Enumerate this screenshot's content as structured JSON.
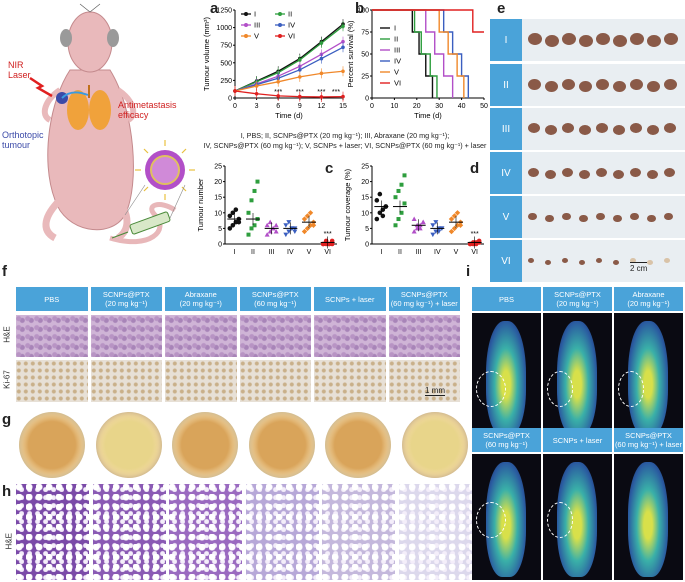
{
  "panel_labels": {
    "a": "a",
    "b": "b",
    "c": "c",
    "d": "d",
    "e": "e",
    "f": "f",
    "g": "g",
    "h": "h",
    "i": "i"
  },
  "mouse": {
    "nir_laser": "NIR\nLaser",
    "orthotopic": "Orthotopic\ntumour",
    "antimetastasis": "Antimetastasis\nefficacy"
  },
  "groups_caption_line1": "I, PBS; II, SCNPs@PTX (20 mg kg⁻¹); III, Abraxane (20 mg kg⁻¹);",
  "groups_caption_line2": "IV, SCNPs@PTX (60 mg kg⁻¹); V, SCNPs + laser; VI, SCNPs@PTX (60 mg kg⁻¹) + laser",
  "colors": {
    "I": "#111111",
    "II": "#2e9e3e",
    "III": "#b24fc8",
    "IV": "#3b5fc0",
    "V": "#f0882a",
    "VI": "#e02020"
  },
  "chart_data": [
    {
      "id": "a",
      "type": "line",
      "xlabel": "Time (d)",
      "ylabel": "Tumour volume (mm³)",
      "x": [
        0,
        3,
        6,
        9,
        12,
        15
      ],
      "xlim": [
        0,
        15
      ],
      "ylim": [
        0,
        1250
      ],
      "xticks": [
        "0",
        "3",
        "6",
        "9",
        "12",
        "15"
      ],
      "yticks": [
        "0",
        "250",
        "500",
        "750",
        "1000",
        "1250"
      ],
      "series": [
        {
          "name": "I",
          "values": [
            100,
            240,
            380,
            560,
            800,
            1050
          ]
        },
        {
          "name": "II",
          "values": [
            100,
            230,
            360,
            540,
            780,
            1020
          ]
        },
        {
          "name": "III",
          "values": [
            100,
            200,
            310,
            450,
            620,
            800
          ]
        },
        {
          "name": "IV",
          "values": [
            100,
            190,
            280,
            400,
            560,
            720
          ]
        },
        {
          "name": "V",
          "values": [
            100,
            170,
            230,
            300,
            350,
            380
          ]
        },
        {
          "name": "VI",
          "values": [
            100,
            60,
            30,
            20,
            15,
            20
          ]
        }
      ],
      "annotations": [
        "***",
        "***",
        "***",
        "***"
      ]
    },
    {
      "id": "b",
      "type": "line",
      "xlabel": "Time (d)",
      "ylabel": "Percent survival (%)",
      "xlim": [
        0,
        50
      ],
      "ylim": [
        0,
        100
      ],
      "xticks": [
        "0",
        "10",
        "20",
        "30",
        "40",
        "50"
      ],
      "yticks": [
        "0",
        "25",
        "50",
        "75",
        "100"
      ],
      "series": [
        {
          "name": "I",
          "steps": [
            [
              0,
              100
            ],
            [
              18,
              100
            ],
            [
              18,
              75
            ],
            [
              21,
              75
            ],
            [
              21,
              50
            ],
            [
              24,
              50
            ],
            [
              24,
              25
            ],
            [
              27,
              25
            ],
            [
              27,
              0
            ]
          ]
        },
        {
          "name": "II",
          "steps": [
            [
              0,
              100
            ],
            [
              19,
              100
            ],
            [
              19,
              75
            ],
            [
              22,
              75
            ],
            [
              22,
              50
            ],
            [
              26,
              50
            ],
            [
              26,
              25
            ],
            [
              29,
              25
            ],
            [
              29,
              0
            ]
          ]
        },
        {
          "name": "III",
          "steps": [
            [
              0,
              100
            ],
            [
              24,
              100
            ],
            [
              24,
              75
            ],
            [
              28,
              75
            ],
            [
              28,
              50
            ],
            [
              32,
              50
            ],
            [
              32,
              25
            ],
            [
              36,
              25
            ],
            [
              36,
              0
            ]
          ]
        },
        {
          "name": "IV",
          "steps": [
            [
              0,
              100
            ],
            [
              32,
              100
            ],
            [
              32,
              75
            ],
            [
              36,
              75
            ],
            [
              36,
              50
            ],
            [
              40,
              50
            ],
            [
              40,
              25
            ],
            [
              43,
              25
            ],
            [
              43,
              0
            ]
          ]
        },
        {
          "name": "V",
          "steps": [
            [
              0,
              100
            ],
            [
              30,
              100
            ],
            [
              30,
              75
            ],
            [
              34,
              75
            ],
            [
              34,
              50
            ],
            [
              38,
              50
            ],
            [
              38,
              25
            ],
            [
              41,
              25
            ],
            [
              41,
              0
            ]
          ]
        },
        {
          "name": "VI",
          "steps": [
            [
              0,
              100
            ],
            [
              45,
              100
            ],
            [
              45,
              75
            ],
            [
              50,
              75
            ]
          ]
        }
      ]
    },
    {
      "id": "c",
      "type": "scatter",
      "ylabel": "Tumour number",
      "ylim": [
        0,
        25
      ],
      "categories": [
        "I",
        "II",
        "III",
        "IV",
        "V",
        "VI"
      ],
      "yticks": [
        "0",
        "5",
        "10",
        "15",
        "20",
        "25"
      ],
      "points": [
        [
          5,
          6,
          7,
          8,
          9,
          10,
          11,
          7
        ],
        [
          3,
          5,
          6,
          8,
          10,
          14,
          17,
          20
        ],
        [
          3,
          4,
          5,
          6,
          6,
          7,
          5,
          4
        ],
        [
          3,
          4,
          5,
          5,
          6,
          7,
          5,
          4
        ],
        [
          4,
          5,
          6,
          7,
          8,
          9,
          10,
          6
        ],
        [
          0,
          0,
          0,
          1,
          0,
          1,
          0,
          0
        ]
      ],
      "means": [
        8,
        8,
        5,
        5,
        7,
        0.5
      ],
      "annotation": "***"
    },
    {
      "id": "d",
      "type": "scatter",
      "ylabel": "Tumour coverage (%)",
      "ylim": [
        0,
        25
      ],
      "categories": [
        "I",
        "II",
        "III",
        "IV",
        "V",
        "VI"
      ],
      "yticks": [
        "0",
        "5",
        "10",
        "15",
        "20",
        "25"
      ],
      "points": [
        [
          8,
          10,
          11,
          12,
          14,
          16,
          9,
          12
        ],
        [
          6,
          8,
          10,
          13,
          15,
          17,
          19,
          22
        ],
        [
          4,
          5,
          6,
          7,
          8,
          6,
          5,
          7
        ],
        [
          3,
          4,
          5,
          5,
          6,
          7,
          4,
          5
        ],
        [
          4,
          5,
          6,
          7,
          8,
          9,
          10,
          6
        ],
        [
          0,
          0,
          0.5,
          1,
          0,
          0.5,
          0,
          0.5
        ]
      ],
      "means": [
        12,
        12,
        6,
        5,
        7,
        0.5
      ],
      "annotation": "***"
    }
  ],
  "panel_e": {
    "rows": [
      "I",
      "II",
      "III",
      "IV",
      "V",
      "VI"
    ],
    "scale": "2 cm"
  },
  "panel_f": {
    "headers": [
      [
        "PBS",
        ""
      ],
      [
        "SCNPs@PTX",
        "(20 mg kg⁻¹)"
      ],
      [
        "Abraxane",
        "(20 mg kg⁻¹)"
      ],
      [
        "SCNPs@PTX",
        "(60 mg kg⁻¹)"
      ],
      [
        "SCNPs + laser",
        ""
      ],
      [
        "SCNPs@PTX",
        "(60 mg kg⁻¹) + laser"
      ]
    ],
    "row_labels": [
      "H&E",
      "Ki-67"
    ],
    "scale": "1 mm"
  },
  "panel_h": {
    "row_label": "H&E"
  },
  "panel_i": {
    "headers_top": [
      [
        "PBS",
        ""
      ],
      [
        "SCNPs@PTX",
        "(20 mg kg⁻¹)"
      ],
      [
        "Abraxane",
        "(20 mg kg⁻¹)"
      ]
    ],
    "headers_bottom": [
      [
        "SCNPs@PTX",
        "(60 mg kg⁻¹)"
      ],
      [
        "SCNPs + laser",
        ""
      ],
      [
        "SCNPs@PTX",
        "(60 mg kg⁻¹) + laser"
      ]
    ]
  }
}
